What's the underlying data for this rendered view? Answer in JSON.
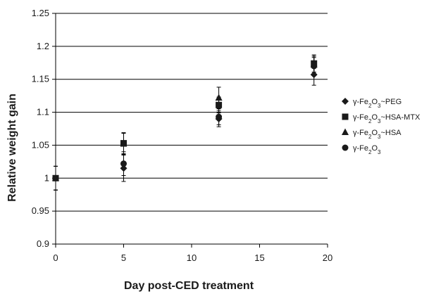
{
  "chart_data": {
    "type": "scatter",
    "title": "",
    "xlabel": "Day post-CED treatment",
    "ylabel": "Relative weight gain",
    "xlim": [
      0,
      20
    ],
    "ylim": [
      0.9,
      1.25
    ],
    "x_ticks": [
      "0",
      "5",
      "10",
      "15",
      "20"
    ],
    "y_ticks": [
      "0.9",
      "0.95",
      "1",
      "1.05",
      "1.1",
      "1.15",
      "1.2",
      "1.25"
    ],
    "grid": "horizontal",
    "legend_position": "right",
    "marker_color": "#1a1a1a",
    "series": [
      {
        "name": "γ-Fe2O3~PEG",
        "legend_parts": [
          [
            "γ-Fe",
            ""
          ],
          [
            "2",
            "sub"
          ],
          [
            "O",
            ""
          ],
          [
            "3",
            "sub"
          ],
          [
            "~PEG",
            ""
          ]
        ],
        "marker": "diamond",
        "points": [
          {
            "x": 0,
            "y": 1.0,
            "err": 0.018
          },
          {
            "x": 5,
            "y": 1.015,
            "err": 0.02
          },
          {
            "x": 12,
            "y": 1.09,
            "err": 0.012
          },
          {
            "x": 19,
            "y": 1.157,
            "err": 0.016
          }
        ]
      },
      {
        "name": "γ-Fe2O3~HSA-MTX",
        "legend_parts": [
          [
            "γ-Fe",
            ""
          ],
          [
            "2",
            "sub"
          ],
          [
            "O",
            ""
          ],
          [
            "3",
            "sub"
          ],
          [
            "~HSA-MTX",
            ""
          ]
        ],
        "marker": "square",
        "points": [
          {
            "x": 0,
            "y": 1.0,
            "err": 0.018
          },
          {
            "x": 5,
            "y": 1.053,
            "err": 0.016
          },
          {
            "x": 12,
            "y": 1.111,
            "err": 0.012
          },
          {
            "x": 19,
            "y": 1.174,
            "err": 0.013
          }
        ]
      },
      {
        "name": "γ-Fe2O3~HSA",
        "legend_parts": [
          [
            "γ-Fe",
            ""
          ],
          [
            "2",
            "sub"
          ],
          [
            "O",
            ""
          ],
          [
            "3",
            "sub"
          ],
          [
            "~HSA",
            ""
          ]
        ],
        "marker": "triangle",
        "points": [
          {
            "x": 0,
            "y": 1.0,
            "err": 0.018
          },
          {
            "x": 5,
            "y": 1.052,
            "err": 0.016
          },
          {
            "x": 12,
            "y": 1.122,
            "err": 0.016
          },
          {
            "x": 19,
            "y": 1.172,
            "err": 0.013
          }
        ]
      },
      {
        "name": "γ-Fe2O3",
        "legend_parts": [
          [
            "γ-Fe",
            ""
          ],
          [
            "2",
            "sub"
          ],
          [
            "O",
            ""
          ],
          [
            "3",
            "sub"
          ]
        ],
        "marker": "circle",
        "points": [
          {
            "x": 0,
            "y": 1.0,
            "err": 0.018
          },
          {
            "x": 5,
            "y": 1.022,
            "err": 0.018
          },
          {
            "x": 12,
            "y": 1.093,
            "err": 0.012
          },
          {
            "x": 19,
            "y": 1.17,
            "err": 0.013
          }
        ]
      }
    ]
  }
}
